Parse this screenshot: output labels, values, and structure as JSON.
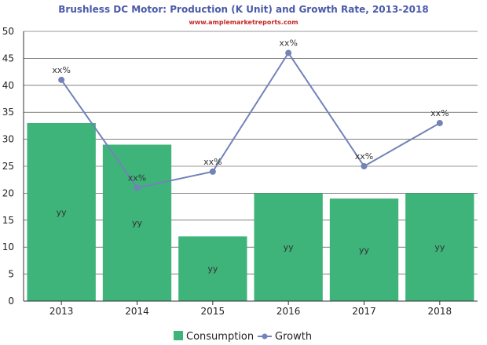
{
  "colors": {
    "title": "#4a5aa8",
    "subtitle": "#c62828",
    "bar": "#3eb37a",
    "line": "#7283b8",
    "grid": "#333333",
    "axis": "#333333"
  },
  "chart_data": {
    "type": "bar",
    "title": "Brushless DC Motor: Production (K Unit) and Growth Rate, 2013-2018",
    "subtitle": "www.amplemarketreports.com",
    "categories": [
      "2013",
      "2014",
      "2015",
      "2016",
      "2017",
      "2018"
    ],
    "ylim": [
      0,
      50
    ],
    "yticks": [
      0,
      5,
      10,
      15,
      20,
      25,
      30,
      35,
      40,
      45,
      50
    ],
    "grid": true,
    "legend_position": "bottom",
    "series": [
      {
        "name": "Consumption",
        "type": "bar",
        "values": [
          33,
          29,
          12,
          20,
          19,
          20
        ],
        "labels": [
          "yy",
          "yy",
          "yy",
          "yy",
          "yy",
          "yy"
        ]
      },
      {
        "name": "Growth",
        "type": "line",
        "values": [
          41,
          21,
          24,
          46,
          25,
          33
        ],
        "labels": [
          "xx%",
          "xx%",
          "xx%",
          "xx%",
          "xx%",
          "xx%"
        ]
      }
    ]
  }
}
